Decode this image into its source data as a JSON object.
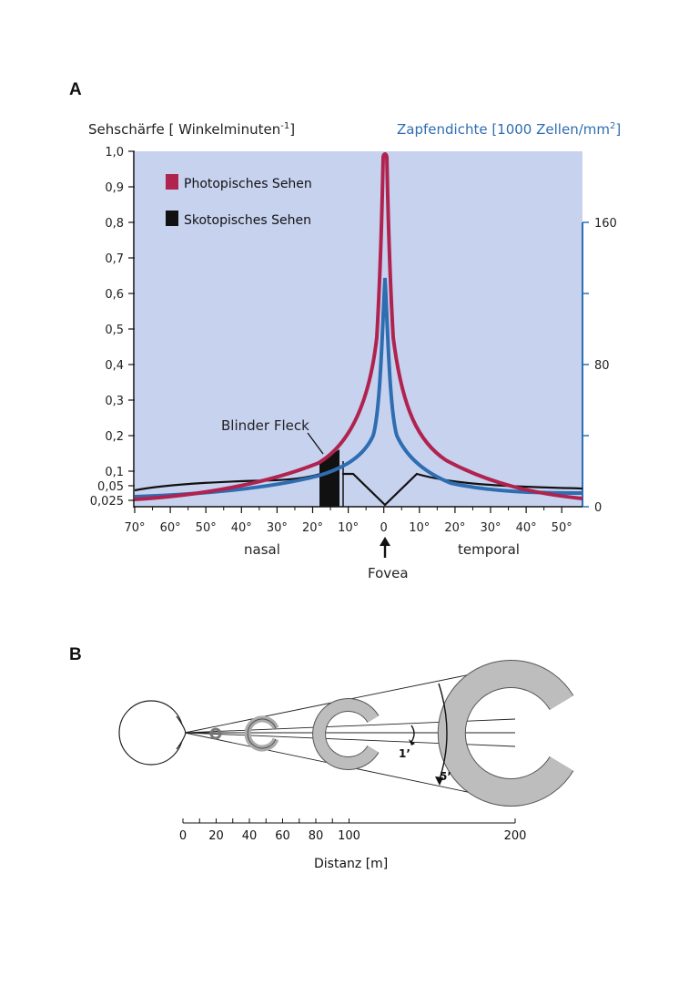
{
  "panel_a": {
    "label": "A",
    "left_axis_title": "Sehschärfe [ Winkelminuten",
    "left_axis_title_sup": "-1",
    "left_axis_title_end": "]",
    "right_axis_title": "Zapfendichte [1000 Zellen/mm",
    "right_axis_title_sup": "2",
    "right_axis_title_end": "]",
    "left_ticks": [
      "1,0",
      "0,9",
      "0,8",
      "0,7",
      "0,6",
      "0,5",
      "0,4",
      "0,3",
      "0,2",
      "0,1",
      "0,05",
      "0,025"
    ],
    "right_ticks": [
      "160",
      "80",
      "0"
    ],
    "x_ticks": [
      "70°",
      "60°",
      "50°",
      "40°",
      "30°",
      "20°",
      "10°",
      "0",
      "10°",
      "20°",
      "30°",
      "40°",
      "50°"
    ],
    "x_region_left": "nasal",
    "x_region_right": "temporal",
    "fovea_label": "Fovea",
    "blind_spot_label": "Blinder Fleck",
    "legend": [
      {
        "label": "Photopisches Sehen",
        "color": "#b0234f"
      },
      {
        "label": "Skotopisches Sehen",
        "color": "#111111"
      }
    ],
    "colors": {
      "background": "#c7d2ef",
      "photopic": "#b0234f",
      "cones": "#2f6db1",
      "scotopic": "#111111"
    }
  },
  "panel_b": {
    "label": "B",
    "angle_small": "1’",
    "angle_large": "5’",
    "scale_ticks": [
      "0",
      "20",
      "40",
      "60",
      "80",
      "100",
      "200"
    ],
    "axis_label": "Distanz [m]"
  }
}
